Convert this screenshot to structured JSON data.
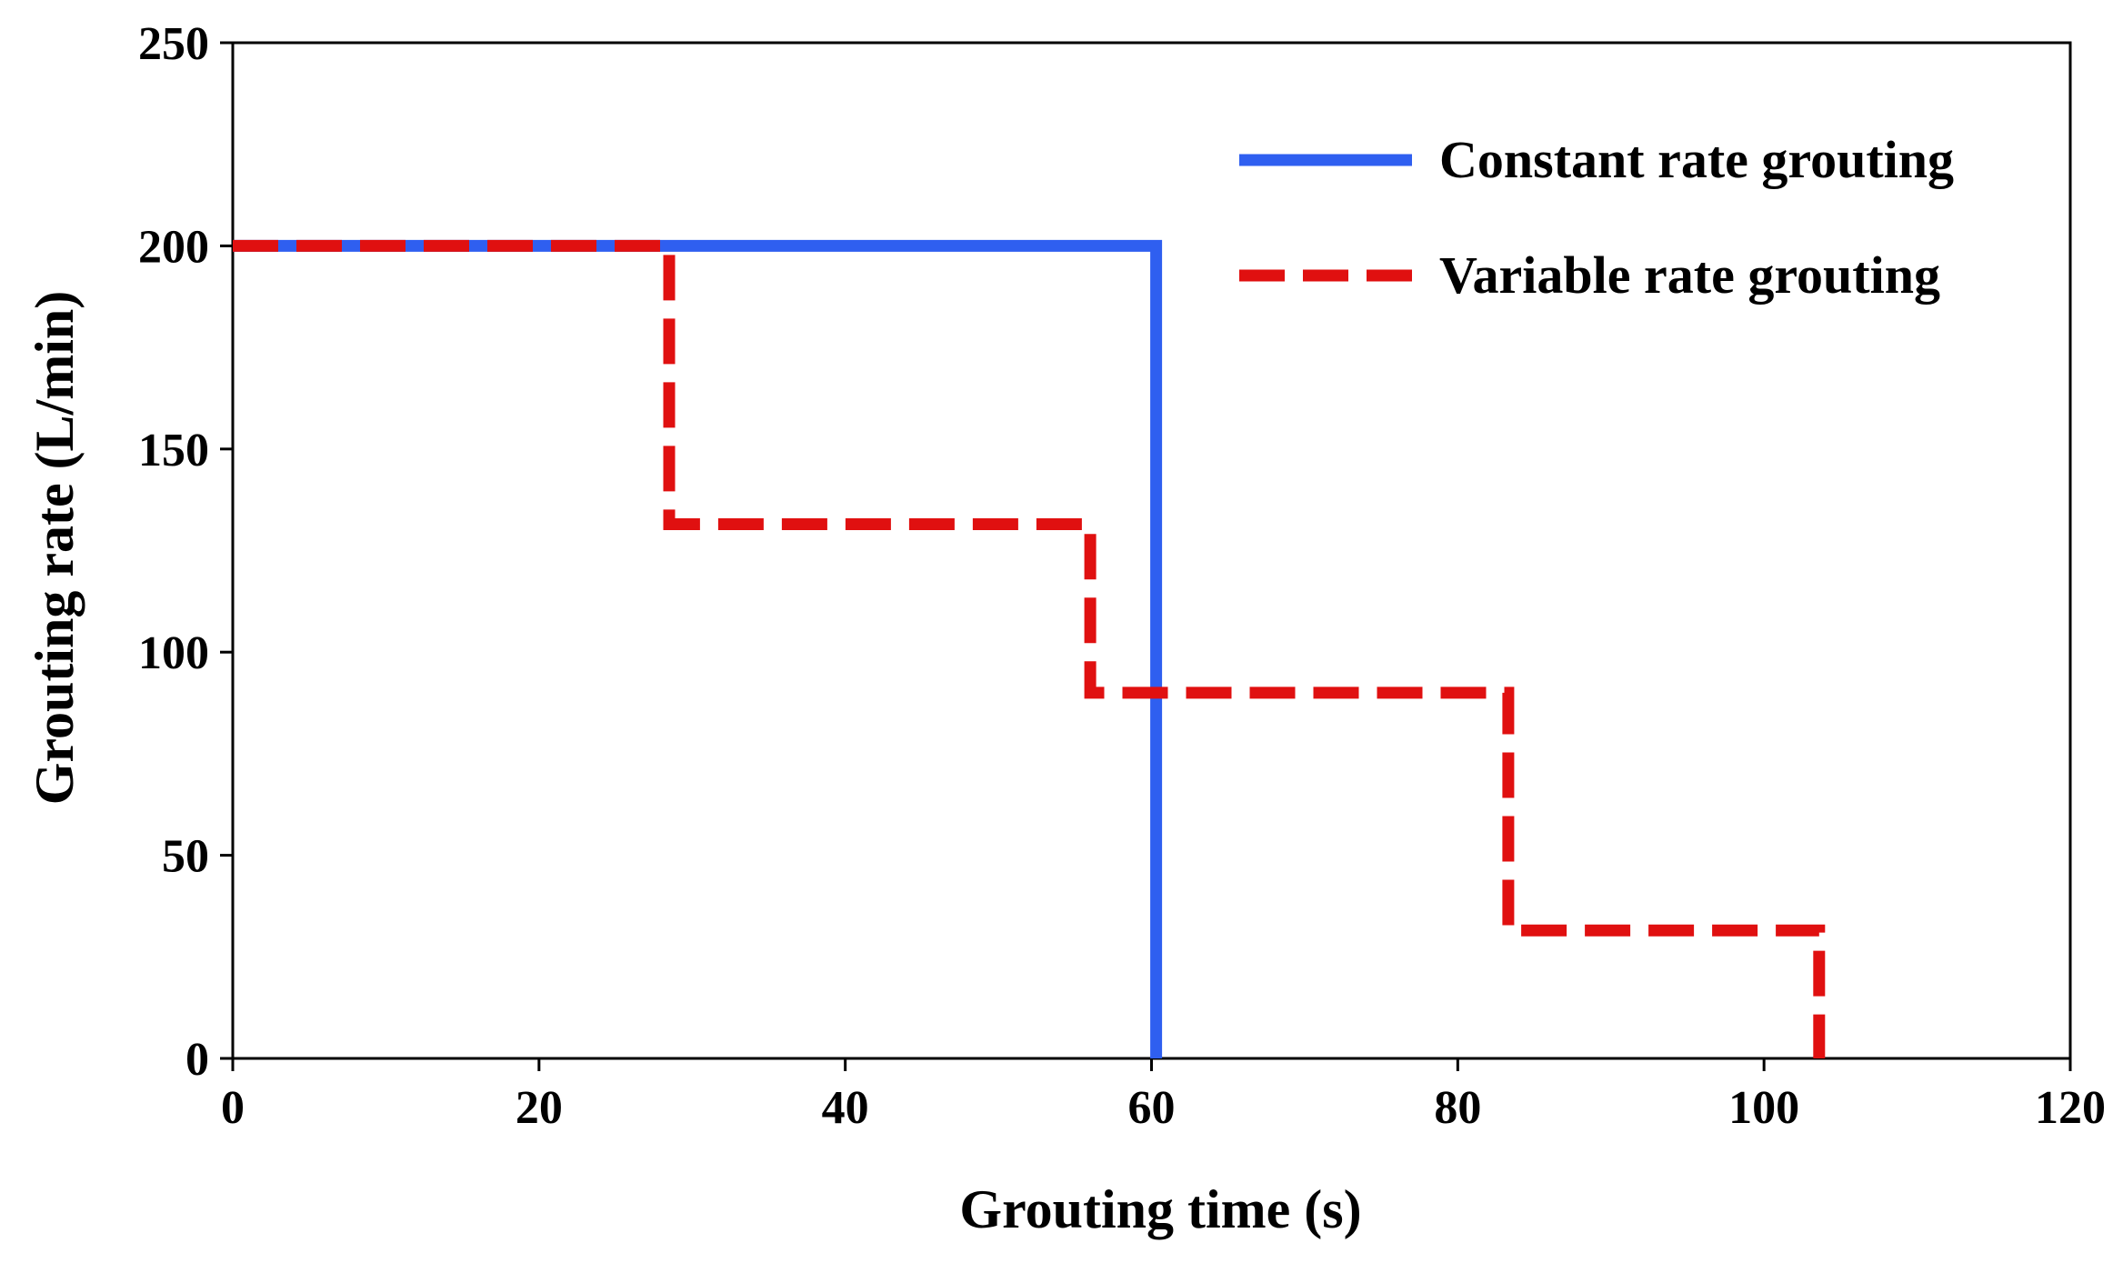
{
  "chart_data": {
    "type": "line",
    "title": "",
    "xlabel": "Grouting time (s)",
    "ylabel": "Grouting rate (L/min)",
    "xlim": [
      0,
      120
    ],
    "ylim": [
      0,
      250
    ],
    "xticks": [
      0,
      20,
      40,
      60,
      80,
      100,
      120
    ],
    "yticks": [
      0,
      50,
      100,
      150,
      200,
      250
    ],
    "grid": false,
    "legend_position": "top-right",
    "series": [
      {
        "name": "Constant rate grouting",
        "color": "#2f5ff0",
        "style": "solid",
        "x": [
          0,
          60.3,
          60.3
        ],
        "y": [
          200,
          200,
          0
        ]
      },
      {
        "name": "Variable rate grouting",
        "color": "#e01010",
        "style": "dashed",
        "x": [
          0,
          28.5,
          28.5,
          56,
          56,
          83.3,
          83.3,
          103.6,
          103.6
        ],
        "y": [
          200,
          200,
          131.5,
          131.5,
          90,
          90,
          31.5,
          31.5,
          0
        ]
      }
    ]
  }
}
